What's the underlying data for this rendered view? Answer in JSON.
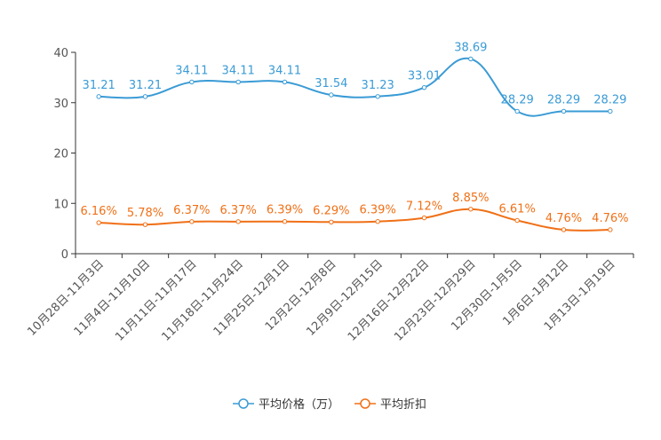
{
  "chart_data": {
    "type": "line",
    "title": "",
    "xlabel": "",
    "ylabel": "",
    "ylim": [
      0,
      40
    ],
    "yticks": [
      0,
      10,
      20,
      30,
      40
    ],
    "categories": [
      "10月28日-11月3日",
      "11月4日-11月10日",
      "11月11日-11月17日",
      "11月18日-11月24日",
      "11月25日-12月1日",
      "12月2日-12月8日",
      "12月9日-12月15日",
      "12月16日-12月22日",
      "12月23日-12月29日",
      "12月30日-1月5日",
      "1月6日-1月12日",
      "1月13日-1月19日"
    ],
    "series": [
      {
        "name": "平均价格（万）",
        "color": "#3a9bd5",
        "values": [
          31.21,
          31.21,
          34.11,
          34.11,
          34.11,
          31.54,
          31.23,
          33.01,
          38.69,
          28.29,
          28.29,
          28.29
        ],
        "labels": [
          "31.21",
          "31.21",
          "34.11",
          "34.11",
          "34.11",
          "31.54",
          "31.23",
          "33.01",
          "38.69",
          "28.29",
          "28.29",
          "28.29"
        ]
      },
      {
        "name": "平均折扣",
        "color": "#f07017",
        "values": [
          6.16,
          5.78,
          6.37,
          6.37,
          6.39,
          6.29,
          6.39,
          7.12,
          8.85,
          6.61,
          4.76,
          4.76
        ],
        "labels": [
          "6.16%",
          "5.78%",
          "6.37%",
          "6.37%",
          "6.39%",
          "6.29%",
          "6.39%",
          "7.12%",
          "8.85%",
          "6.61%",
          "4.76%",
          "4.76%"
        ]
      }
    ],
    "legend_position": "bottom-center"
  }
}
